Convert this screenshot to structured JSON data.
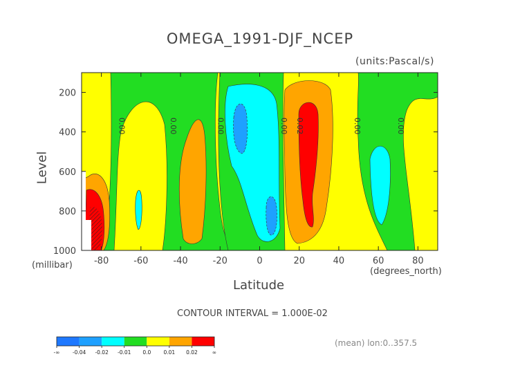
{
  "chart_data": {
    "type": "heatmap",
    "subtype": "filled-contour",
    "title": "OMEGA_1991-DJF_NCEP",
    "units_label": "(units:Pascal/s)",
    "xlabel": "Latitude",
    "ylabel": "Level",
    "x_unit_label": "(degrees_north)",
    "y_unit_label": "(millibar)",
    "xlim": [
      -90,
      90
    ],
    "ylim": [
      1000,
      100
    ],
    "x_ticks": [
      "-80",
      "-60",
      "-40",
      "-20",
      "0",
      "20",
      "40",
      "60",
      "80"
    ],
    "y_ticks": [
      "200",
      "400",
      "600",
      "800",
      "1000"
    ],
    "contour_interval_text": "CONTOUR INTERVAL = 1.000E-02",
    "footer_text": "(mean) lon:0..357.5",
    "contour_labels": [
      "0.00",
      "0.00",
      "0.00",
      "0.00",
      "0.02",
      "0.00",
      "0.00"
    ],
    "contour_label_lats": [
      -71,
      -45,
      -21,
      11,
      19,
      48,
      70
    ],
    "contour_label_level": 370,
    "colorbar": {
      "labels": [
        "-∞",
        "-0.04",
        "-0.02",
        "-0.01",
        "0.0",
        "0.01",
        "0.02",
        "∞"
      ],
      "colors": [
        "#1e78ff",
        "#1ea0ff",
        "#00ffff",
        "#22dd22",
        "#ffff00",
        "#ffa500",
        "#ff0000"
      ]
    },
    "regions": [
      {
        "value_class": "0.0 to 0.01",
        "color": "#ffff00",
        "lat": [
          -90,
          90
        ],
        "level": [
          100,
          1000
        ]
      },
      {
        "value_class": "-0.01 to 0.0",
        "color": "#22dd22",
        "lat": [
          -72,
          -27
        ],
        "level": [
          100,
          1000
        ]
      },
      {
        "value_class": "-0.01 to 0.0",
        "color": "#22dd22",
        "lat": [
          -22,
          12
        ],
        "level": [
          100,
          1000
        ]
      },
      {
        "value_class": "-0.01 to 0.0",
        "color": "#22dd22",
        "lat": [
          48,
          90
        ],
        "level": [
          100,
          1000
        ]
      },
      {
        "value_class": "0.01 to 0.02",
        "color": "#ffa500",
        "lat": [
          -40,
          -28
        ],
        "level": [
          280,
          950
        ]
      },
      {
        "value_class": "-0.02 to -0.01",
        "color": "#00ffff",
        "lat": [
          -20,
          10
        ],
        "level": [
          150,
          950
        ]
      },
      {
        "value_class": "-0.04 to -0.02",
        "color": "#1ea0ff",
        "lat": [
          -14,
          -7
        ],
        "level": [
          250,
          520
        ]
      },
      {
        "value_class": "-0.04 to -0.02",
        "color": "#1ea0ff",
        "lat": [
          4,
          9
        ],
        "level": [
          720,
          930
        ]
      },
      {
        "value_class": "0.01 to 0.02",
        "color": "#ffa500",
        "lat": [
          12,
          35
        ],
        "level": [
          140,
          960
        ]
      },
      {
        "value_class": "0.02 to 0.04",
        "color": "#ff0000",
        "lat": [
          18,
          29
        ],
        "level": [
          230,
          880
        ]
      },
      {
        "value_class": "-0.02 to -0.01",
        "color": "#00ffff",
        "lat": [
          52,
          63
        ],
        "level": [
          450,
          890
        ]
      },
      {
        "value_class": "0.01 to 0.02",
        "color": "#ffa500",
        "lat": [
          -38,
          -30
        ],
        "level": [
          330,
          870
        ]
      },
      {
        "value_class": "0.02 to 0.04",
        "color": "#ff0000",
        "lat": [
          -90,
          -83
        ],
        "level": [
          640,
          1000
        ]
      }
    ]
  }
}
